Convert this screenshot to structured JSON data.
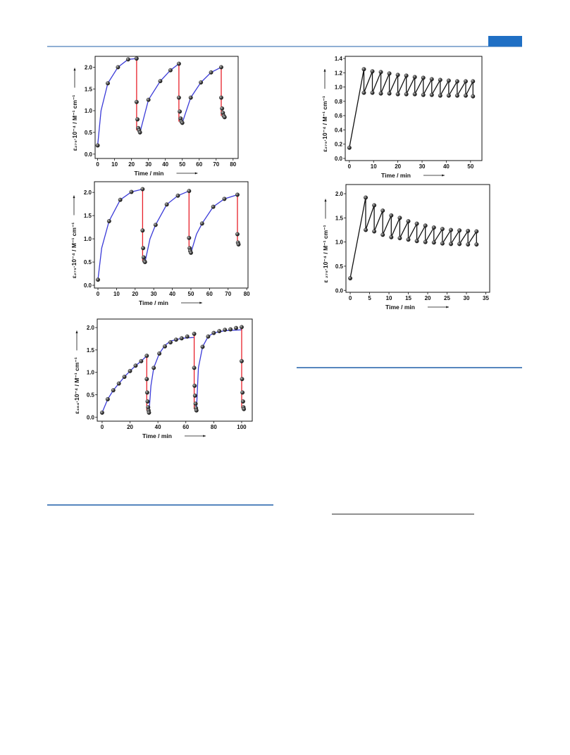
{
  "chart_data": [
    {
      "type": "scatter",
      "x_label": "Time / min",
      "y_label": "ε₂₇₅·10⁻⁴ / M⁻¹ cm⁻¹",
      "xlim": [
        -1.5,
        83
      ],
      "ylim": [
        -0.1,
        2.25
      ],
      "xticks": [
        0,
        10,
        20,
        30,
        40,
        50,
        60,
        70,
        80
      ],
      "yticks": [
        {
          "value": 0,
          "label": "0.0"
        },
        0.5,
        {
          "value": 1,
          "label": "1.0"
        },
        1.5,
        {
          "value": 2,
          "label": "2.0"
        }
      ],
      "series": [
        {
          "mode": "line",
          "color": "#3a3ad8",
          "x": [
            0,
            2,
            6,
            12,
            18,
            23,
            null,
            25,
            30,
            37,
            43,
            48,
            null,
            50,
            55,
            61,
            67,
            73
          ],
          "y": [
            0.2,
            1.0,
            1.63,
            2.0,
            2.18,
            2.2,
            null,
            0.5,
            1.25,
            1.68,
            1.93,
            2.08,
            null,
            0.72,
            1.3,
            1.65,
            1.88,
            2.0
          ]
        },
        {
          "mode": "line",
          "color": "#e8202a",
          "x": [
            23,
            23,
            null,
            48,
            48,
            null,
            73,
            73
          ],
          "y": [
            2.2,
            0.55,
            null,
            2.08,
            0.75,
            null,
            2.0,
            0.88
          ]
        },
        {
          "mode": "markers",
          "color": "#222222",
          "x": [
            0,
            6,
            12,
            18,
            23,
            23,
            23.5,
            24,
            24.5,
            25,
            30,
            37,
            43,
            48,
            48,
            48.5,
            49,
            49.5,
            50,
            55,
            61,
            67,
            73,
            73,
            73.5,
            74,
            74.5,
            75
          ],
          "y": [
            0.2,
            1.63,
            2.0,
            2.18,
            2.2,
            1.2,
            0.8,
            0.6,
            0.55,
            0.5,
            1.25,
            1.68,
            1.93,
            2.08,
            1.3,
            0.98,
            0.82,
            0.75,
            0.72,
            1.3,
            1.65,
            1.88,
            2.0,
            1.3,
            1.05,
            0.95,
            0.88,
            0.85
          ]
        }
      ]
    },
    {
      "type": "scatter",
      "x_label": "Time / min",
      "y_label": "ε₂₇₅·10⁻⁴ / M⁻¹ cm⁻¹",
      "xlim": [
        -1.9,
        80.7
      ],
      "ylim": [
        -0.06,
        2.23
      ],
      "xticks": [
        0,
        10,
        20,
        30,
        40,
        50,
        60,
        70,
        80
      ],
      "yticks": [
        {
          "value": 0,
          "label": "0.0"
        },
        0.5,
        {
          "value": 1,
          "label": "1.0"
        },
        1.5,
        {
          "value": 2,
          "label": "2.0"
        }
      ],
      "series": [
        {
          "mode": "line",
          "color": "#3a3ad8",
          "x": [
            0,
            2,
            6,
            12,
            18,
            24,
            null,
            25.3,
            28,
            31,
            37,
            43,
            49,
            null,
            50,
            53,
            56,
            62,
            68,
            75
          ],
          "y": [
            0.12,
            0.8,
            1.38,
            1.84,
            2.01,
            2.07,
            null,
            0.5,
            1.0,
            1.3,
            1.74,
            1.93,
            2.03,
            null,
            0.7,
            1.1,
            1.33,
            1.69,
            1.86,
            1.95
          ]
        },
        {
          "mode": "line",
          "color": "#e8202a",
          "x": [
            24,
            24,
            null,
            49,
            49,
            null,
            75,
            75
          ],
          "y": [
            2.07,
            0.52,
            null,
            2.03,
            0.72,
            null,
            1.95,
            0.9
          ]
        },
        {
          "mode": "markers",
          "color": "#222222",
          "x": [
            0,
            6,
            12,
            18,
            24,
            24,
            24.3,
            24.6,
            25,
            25.3,
            31,
            37,
            43,
            49,
            49,
            49.3,
            49.6,
            50,
            56,
            62,
            68,
            75,
            75,
            75.3,
            75.6
          ],
          "y": [
            0.12,
            1.38,
            1.84,
            2.01,
            2.07,
            1.18,
            0.8,
            0.6,
            0.52,
            0.5,
            1.3,
            1.74,
            1.93,
            2.03,
            1.02,
            0.8,
            0.74,
            0.7,
            1.33,
            1.69,
            1.86,
            1.95,
            1.1,
            0.92,
            0.88
          ]
        }
      ]
    },
    {
      "type": "scatter",
      "x_label": "Time / min",
      "y_label": "ε₄₆₄·10⁻⁴ / M⁻¹ cm⁻¹",
      "xlim": [
        -3.5,
        107.6
      ],
      "ylim": [
        -0.09,
        2.19
      ],
      "xticks": [
        0,
        20,
        40,
        60,
        80,
        100
      ],
      "yticks": [
        {
          "value": 0,
          "label": "0.0"
        },
        0.5,
        {
          "value": 1,
          "label": "1.0"
        },
        1.5,
        {
          "value": 2,
          "label": "2.0"
        }
      ],
      "series": [
        {
          "mode": "line",
          "color": "#3a3ad8",
          "x": [
            0,
            4,
            8,
            12,
            16,
            20,
            24,
            28,
            32,
            null,
            33.6,
            35,
            37,
            41,
            45,
            49,
            57,
            66,
            null,
            67.6,
            69,
            72,
            76,
            80,
            88,
            100
          ],
          "y": [
            0.1,
            0.4,
            0.6,
            0.75,
            0.9,
            1.03,
            1.15,
            1.25,
            1.37,
            null,
            0.1,
            0.7,
            1.1,
            1.42,
            1.6,
            1.7,
            1.76,
            1.78,
            null,
            0.15,
            1.1,
            1.57,
            1.8,
            1.88,
            1.93,
            1.95
          ]
        },
        {
          "mode": "line",
          "color": "#e8202a",
          "x": [
            32,
            32,
            null,
            66,
            66,
            null,
            100,
            100
          ],
          "y": [
            1.37,
            0.15,
            null,
            1.86,
            0.18,
            null,
            2.01,
            0.2
          ]
        },
        {
          "mode": "markers",
          "color": "#222222",
          "x": [
            0,
            4,
            8,
            12,
            16,
            20,
            24,
            28,
            32,
            32,
            32.3,
            32.6,
            33,
            33.3,
            33.6,
            37,
            41,
            45,
            49,
            53,
            57,
            61,
            66,
            66,
            66.3,
            66.6,
            67,
            67.3,
            67.6,
            72,
            76,
            80,
            84,
            88,
            92,
            96,
            100,
            100,
            100.3,
            100.6,
            101,
            101.3,
            101.6
          ],
          "y": [
            0.1,
            0.4,
            0.6,
            0.75,
            0.9,
            1.03,
            1.15,
            1.25,
            1.37,
            0.85,
            0.55,
            0.35,
            0.22,
            0.15,
            0.1,
            1.1,
            1.42,
            1.58,
            1.67,
            1.73,
            1.76,
            1.8,
            1.86,
            1.1,
            0.7,
            0.48,
            0.3,
            0.2,
            0.15,
            1.57,
            1.8,
            1.88,
            1.92,
            1.95,
            1.96,
            1.99,
            2.01,
            1.25,
            0.85,
            0.55,
            0.35,
            0.22,
            0.18
          ]
        }
      ]
    },
    {
      "type": "scatter",
      "x_label": "Time / min",
      "y_label": "ε₂₇₅·10⁻⁴ / M⁻¹ cm⁻¹",
      "xlim": [
        -1.7,
        54.7
      ],
      "ylim": [
        -0.03,
        1.43
      ],
      "xticks": [
        0,
        10,
        20,
        30,
        40,
        50
      ],
      "yticks": [
        {
          "value": 0,
          "label": "0.0"
        },
        0.2,
        0.4,
        0.6,
        0.8,
        {
          "value": 1,
          "label": "1.0"
        },
        1.2,
        1.4
      ],
      "series": [
        {
          "mode": "line+markers",
          "color": "#111111",
          "x": [
            0,
            6,
            6,
            9.5,
            9.5,
            13,
            13,
            16.5,
            16.5,
            20,
            20,
            23.5,
            23.5,
            27,
            27,
            30.5,
            30.5,
            34,
            34,
            37.5,
            37.5,
            41,
            41,
            44.5,
            44.5,
            48,
            48,
            51,
            51
          ],
          "y": [
            0.15,
            1.25,
            0.92,
            1.22,
            0.92,
            1.21,
            0.91,
            1.19,
            0.91,
            1.17,
            0.9,
            1.16,
            0.9,
            1.14,
            0.9,
            1.13,
            0.89,
            1.11,
            0.89,
            1.1,
            0.88,
            1.09,
            0.88,
            1.08,
            0.88,
            1.08,
            0.88,
            1.08,
            0.87
          ]
        }
      ]
    },
    {
      "type": "scatter",
      "x_label": "Time / min",
      "y_label": "ε ₂₇₅·10⁻⁴ / M⁻¹ cm⁻¹",
      "xlim": [
        -1.1,
        36
      ],
      "ylim": [
        -0.04,
        2.19
      ],
      "xticks": [
        0,
        5,
        10,
        15,
        20,
        25,
        30,
        35
      ],
      "yticks": [
        {
          "value": 0,
          "label": "0.0"
        },
        0.5,
        {
          "value": 1,
          "label": "1.0"
        },
        1.5,
        {
          "value": 2,
          "label": "2.0"
        }
      ],
      "series": [
        {
          "mode": "line+markers",
          "color": "#111111",
          "x": [
            0,
            4,
            4,
            6.2,
            6.2,
            8.4,
            8.4,
            10.6,
            10.6,
            12.8,
            12.8,
            15,
            15,
            17.2,
            17.2,
            19.4,
            19.4,
            21.6,
            21.6,
            23.8,
            23.8,
            26,
            26,
            28.2,
            28.2,
            30.4,
            30.4,
            32.6,
            32.6
          ],
          "y": [
            0.25,
            1.92,
            1.25,
            1.76,
            1.22,
            1.65,
            1.15,
            1.55,
            1.1,
            1.5,
            1.08,
            1.43,
            1.05,
            1.38,
            1.02,
            1.34,
            1.0,
            1.3,
            0.99,
            1.27,
            0.97,
            1.25,
            0.96,
            1.24,
            0.96,
            1.23,
            0.95,
            1.22,
            0.95
          ]
        }
      ]
    }
  ]
}
